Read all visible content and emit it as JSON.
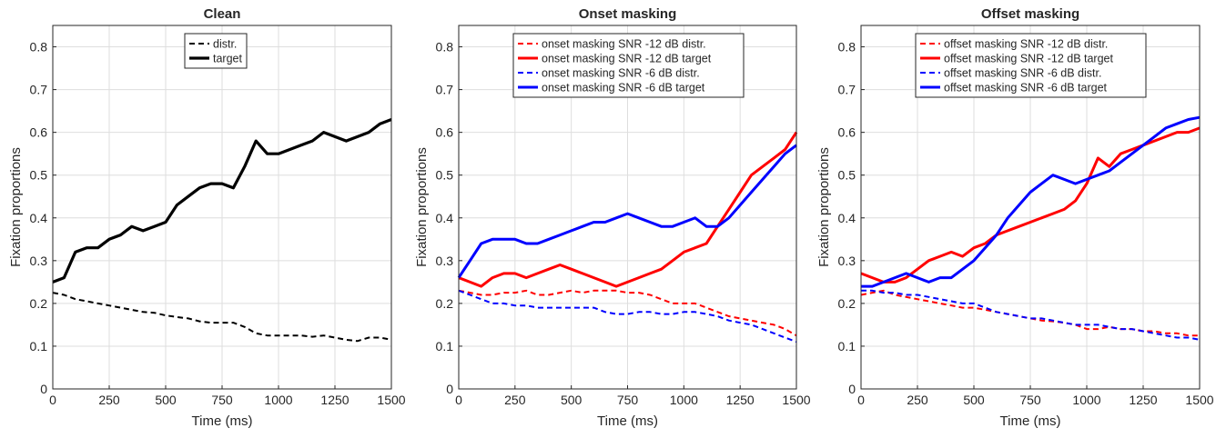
{
  "chart_data": [
    {
      "type": "line",
      "title": "Clean",
      "xlabel": "Time (ms)",
      "ylabel": "Fixation proportions",
      "xlim": [
        0,
        1500
      ],
      "ylim": [
        0,
        0.85
      ],
      "xticks": [
        0,
        250,
        500,
        750,
        1000,
        1250,
        1500
      ],
      "yticks": [
        0,
        0.1,
        0.2,
        0.3,
        0.4,
        0.5,
        0.6,
        0.7,
        0.8
      ],
      "grid": true,
      "legend_position": "top-center",
      "x": [
        0,
        50,
        100,
        150,
        200,
        250,
        300,
        350,
        400,
        450,
        500,
        550,
        600,
        650,
        700,
        750,
        800,
        850,
        900,
        950,
        1000,
        1050,
        1100,
        1150,
        1200,
        1250,
        1300,
        1350,
        1400,
        1450,
        1500
      ],
      "series": [
        {
          "name": "distr.",
          "color": "#000000",
          "dash": true,
          "width": 2,
          "values": [
            0.225,
            0.22,
            0.21,
            0.205,
            0.2,
            0.195,
            0.19,
            0.185,
            0.18,
            0.178,
            0.172,
            0.168,
            0.165,
            0.158,
            0.155,
            0.155,
            0.155,
            0.145,
            0.13,
            0.125,
            0.125,
            0.125,
            0.125,
            0.122,
            0.125,
            0.12,
            0.115,
            0.112,
            0.12,
            0.12,
            0.115
          ]
        },
        {
          "name": "target",
          "color": "#000000",
          "dash": false,
          "width": 3.2,
          "values": [
            0.25,
            0.26,
            0.32,
            0.33,
            0.33,
            0.35,
            0.36,
            0.38,
            0.37,
            0.38,
            0.39,
            0.43,
            0.45,
            0.47,
            0.48,
            0.48,
            0.47,
            0.52,
            0.58,
            0.55,
            0.55,
            0.56,
            0.57,
            0.58,
            0.6,
            0.59,
            0.58,
            0.59,
            0.6,
            0.62,
            0.63
          ]
        }
      ]
    },
    {
      "type": "line",
      "title": "Onset masking",
      "xlabel": "Time (ms)",
      "ylabel": "Fixation proportions",
      "xlim": [
        0,
        1500
      ],
      "ylim": [
        0,
        0.85
      ],
      "xticks": [
        0,
        250,
        500,
        750,
        1000,
        1250,
        1500
      ],
      "yticks": [
        0,
        0.1,
        0.2,
        0.3,
        0.4,
        0.5,
        0.6,
        0.7,
        0.8
      ],
      "grid": true,
      "legend_position": "top-center",
      "x": [
        0,
        50,
        100,
        150,
        200,
        250,
        300,
        350,
        400,
        450,
        500,
        550,
        600,
        650,
        700,
        750,
        800,
        850,
        900,
        950,
        1000,
        1050,
        1100,
        1150,
        1200,
        1250,
        1300,
        1350,
        1400,
        1450,
        1500
      ],
      "series": [
        {
          "name": "onset masking SNR -12 dB distr.",
          "color": "#ff0000",
          "dash": true,
          "width": 2,
          "values": [
            0.23,
            0.225,
            0.22,
            0.22,
            0.225,
            0.225,
            0.23,
            0.22,
            0.22,
            0.225,
            0.23,
            0.225,
            0.23,
            0.23,
            0.23,
            0.225,
            0.225,
            0.22,
            0.21,
            0.2,
            0.2,
            0.2,
            0.19,
            0.18,
            0.17,
            0.165,
            0.16,
            0.155,
            0.15,
            0.14,
            0.125
          ]
        },
        {
          "name": "onset masking SNR -12 dB target",
          "color": "#ff0000",
          "dash": false,
          "width": 3,
          "values": [
            0.26,
            0.25,
            0.24,
            0.26,
            0.27,
            0.27,
            0.26,
            0.27,
            0.28,
            0.29,
            0.28,
            0.27,
            0.26,
            0.25,
            0.24,
            0.25,
            0.26,
            0.27,
            0.28,
            0.3,
            0.32,
            0.33,
            0.34,
            0.38,
            0.42,
            0.46,
            0.5,
            0.52,
            0.54,
            0.56,
            0.6
          ]
        },
        {
          "name": "onset masking SNR -6 dB  distr.",
          "color": "#0000ff",
          "dash": true,
          "width": 2,
          "values": [
            0.23,
            0.22,
            0.21,
            0.2,
            0.2,
            0.195,
            0.195,
            0.19,
            0.19,
            0.19,
            0.19,
            0.19,
            0.19,
            0.18,
            0.175,
            0.175,
            0.18,
            0.18,
            0.175,
            0.175,
            0.18,
            0.18,
            0.175,
            0.17,
            0.16,
            0.155,
            0.15,
            0.14,
            0.13,
            0.12,
            0.11
          ]
        },
        {
          "name": "onset masking SNR -6 dB  target",
          "color": "#0000ff",
          "dash": false,
          "width": 3,
          "values": [
            0.26,
            0.3,
            0.34,
            0.35,
            0.35,
            0.35,
            0.34,
            0.34,
            0.35,
            0.36,
            0.37,
            0.38,
            0.39,
            0.39,
            0.4,
            0.41,
            0.4,
            0.39,
            0.38,
            0.38,
            0.39,
            0.4,
            0.38,
            0.38,
            0.4,
            0.43,
            0.46,
            0.49,
            0.52,
            0.55,
            0.57
          ]
        }
      ]
    },
    {
      "type": "line",
      "title": "Offset masking",
      "xlabel": "Time (ms)",
      "ylabel": "Fixation proportions",
      "xlim": [
        0,
        1500
      ],
      "ylim": [
        0,
        0.85
      ],
      "xticks": [
        0,
        250,
        500,
        750,
        1000,
        1250,
        1500
      ],
      "yticks": [
        0,
        0.1,
        0.2,
        0.3,
        0.4,
        0.5,
        0.6,
        0.7,
        0.8
      ],
      "grid": true,
      "legend_position": "top-center",
      "x": [
        0,
        50,
        100,
        150,
        200,
        250,
        300,
        350,
        400,
        450,
        500,
        550,
        600,
        650,
        700,
        750,
        800,
        850,
        900,
        950,
        1000,
        1050,
        1100,
        1150,
        1200,
        1250,
        1300,
        1350,
        1400,
        1450,
        1500
      ],
      "series": [
        {
          "name": "offset masking SNR -12 dB distr.",
          "color": "#ff0000",
          "dash": true,
          "width": 2,
          "values": [
            0.22,
            0.225,
            0.23,
            0.22,
            0.215,
            0.21,
            0.205,
            0.2,
            0.195,
            0.19,
            0.19,
            0.185,
            0.18,
            0.175,
            0.17,
            0.165,
            0.16,
            0.158,
            0.155,
            0.15,
            0.14,
            0.14,
            0.145,
            0.14,
            0.14,
            0.135,
            0.135,
            0.13,
            0.13,
            0.125,
            0.125
          ]
        },
        {
          "name": "offset masking SNR -12 dB target",
          "color": "#ff0000",
          "dash": false,
          "width": 3,
          "values": [
            0.27,
            0.26,
            0.25,
            0.25,
            0.26,
            0.28,
            0.3,
            0.31,
            0.32,
            0.31,
            0.33,
            0.34,
            0.36,
            0.37,
            0.38,
            0.39,
            0.4,
            0.41,
            0.42,
            0.44,
            0.48,
            0.54,
            0.52,
            0.55,
            0.56,
            0.57,
            0.58,
            0.59,
            0.6,
            0.6,
            0.61
          ]
        },
        {
          "name": "offset masking SNR -6 dB  distr.",
          "color": "#0000ff",
          "dash": true,
          "width": 2,
          "values": [
            0.23,
            0.23,
            0.225,
            0.225,
            0.22,
            0.22,
            0.215,
            0.21,
            0.205,
            0.2,
            0.2,
            0.19,
            0.18,
            0.175,
            0.17,
            0.165,
            0.165,
            0.16,
            0.155,
            0.15,
            0.15,
            0.15,
            0.145,
            0.14,
            0.14,
            0.135,
            0.13,
            0.125,
            0.12,
            0.12,
            0.115
          ]
        },
        {
          "name": "offset masking SNR -6 dB  target",
          "color": "#0000ff",
          "dash": false,
          "width": 3,
          "values": [
            0.24,
            0.24,
            0.25,
            0.26,
            0.27,
            0.26,
            0.25,
            0.26,
            0.26,
            0.28,
            0.3,
            0.33,
            0.36,
            0.4,
            0.43,
            0.46,
            0.48,
            0.5,
            0.49,
            0.48,
            0.49,
            0.5,
            0.51,
            0.53,
            0.55,
            0.57,
            0.59,
            0.61,
            0.62,
            0.63,
            0.635
          ]
        }
      ]
    }
  ]
}
